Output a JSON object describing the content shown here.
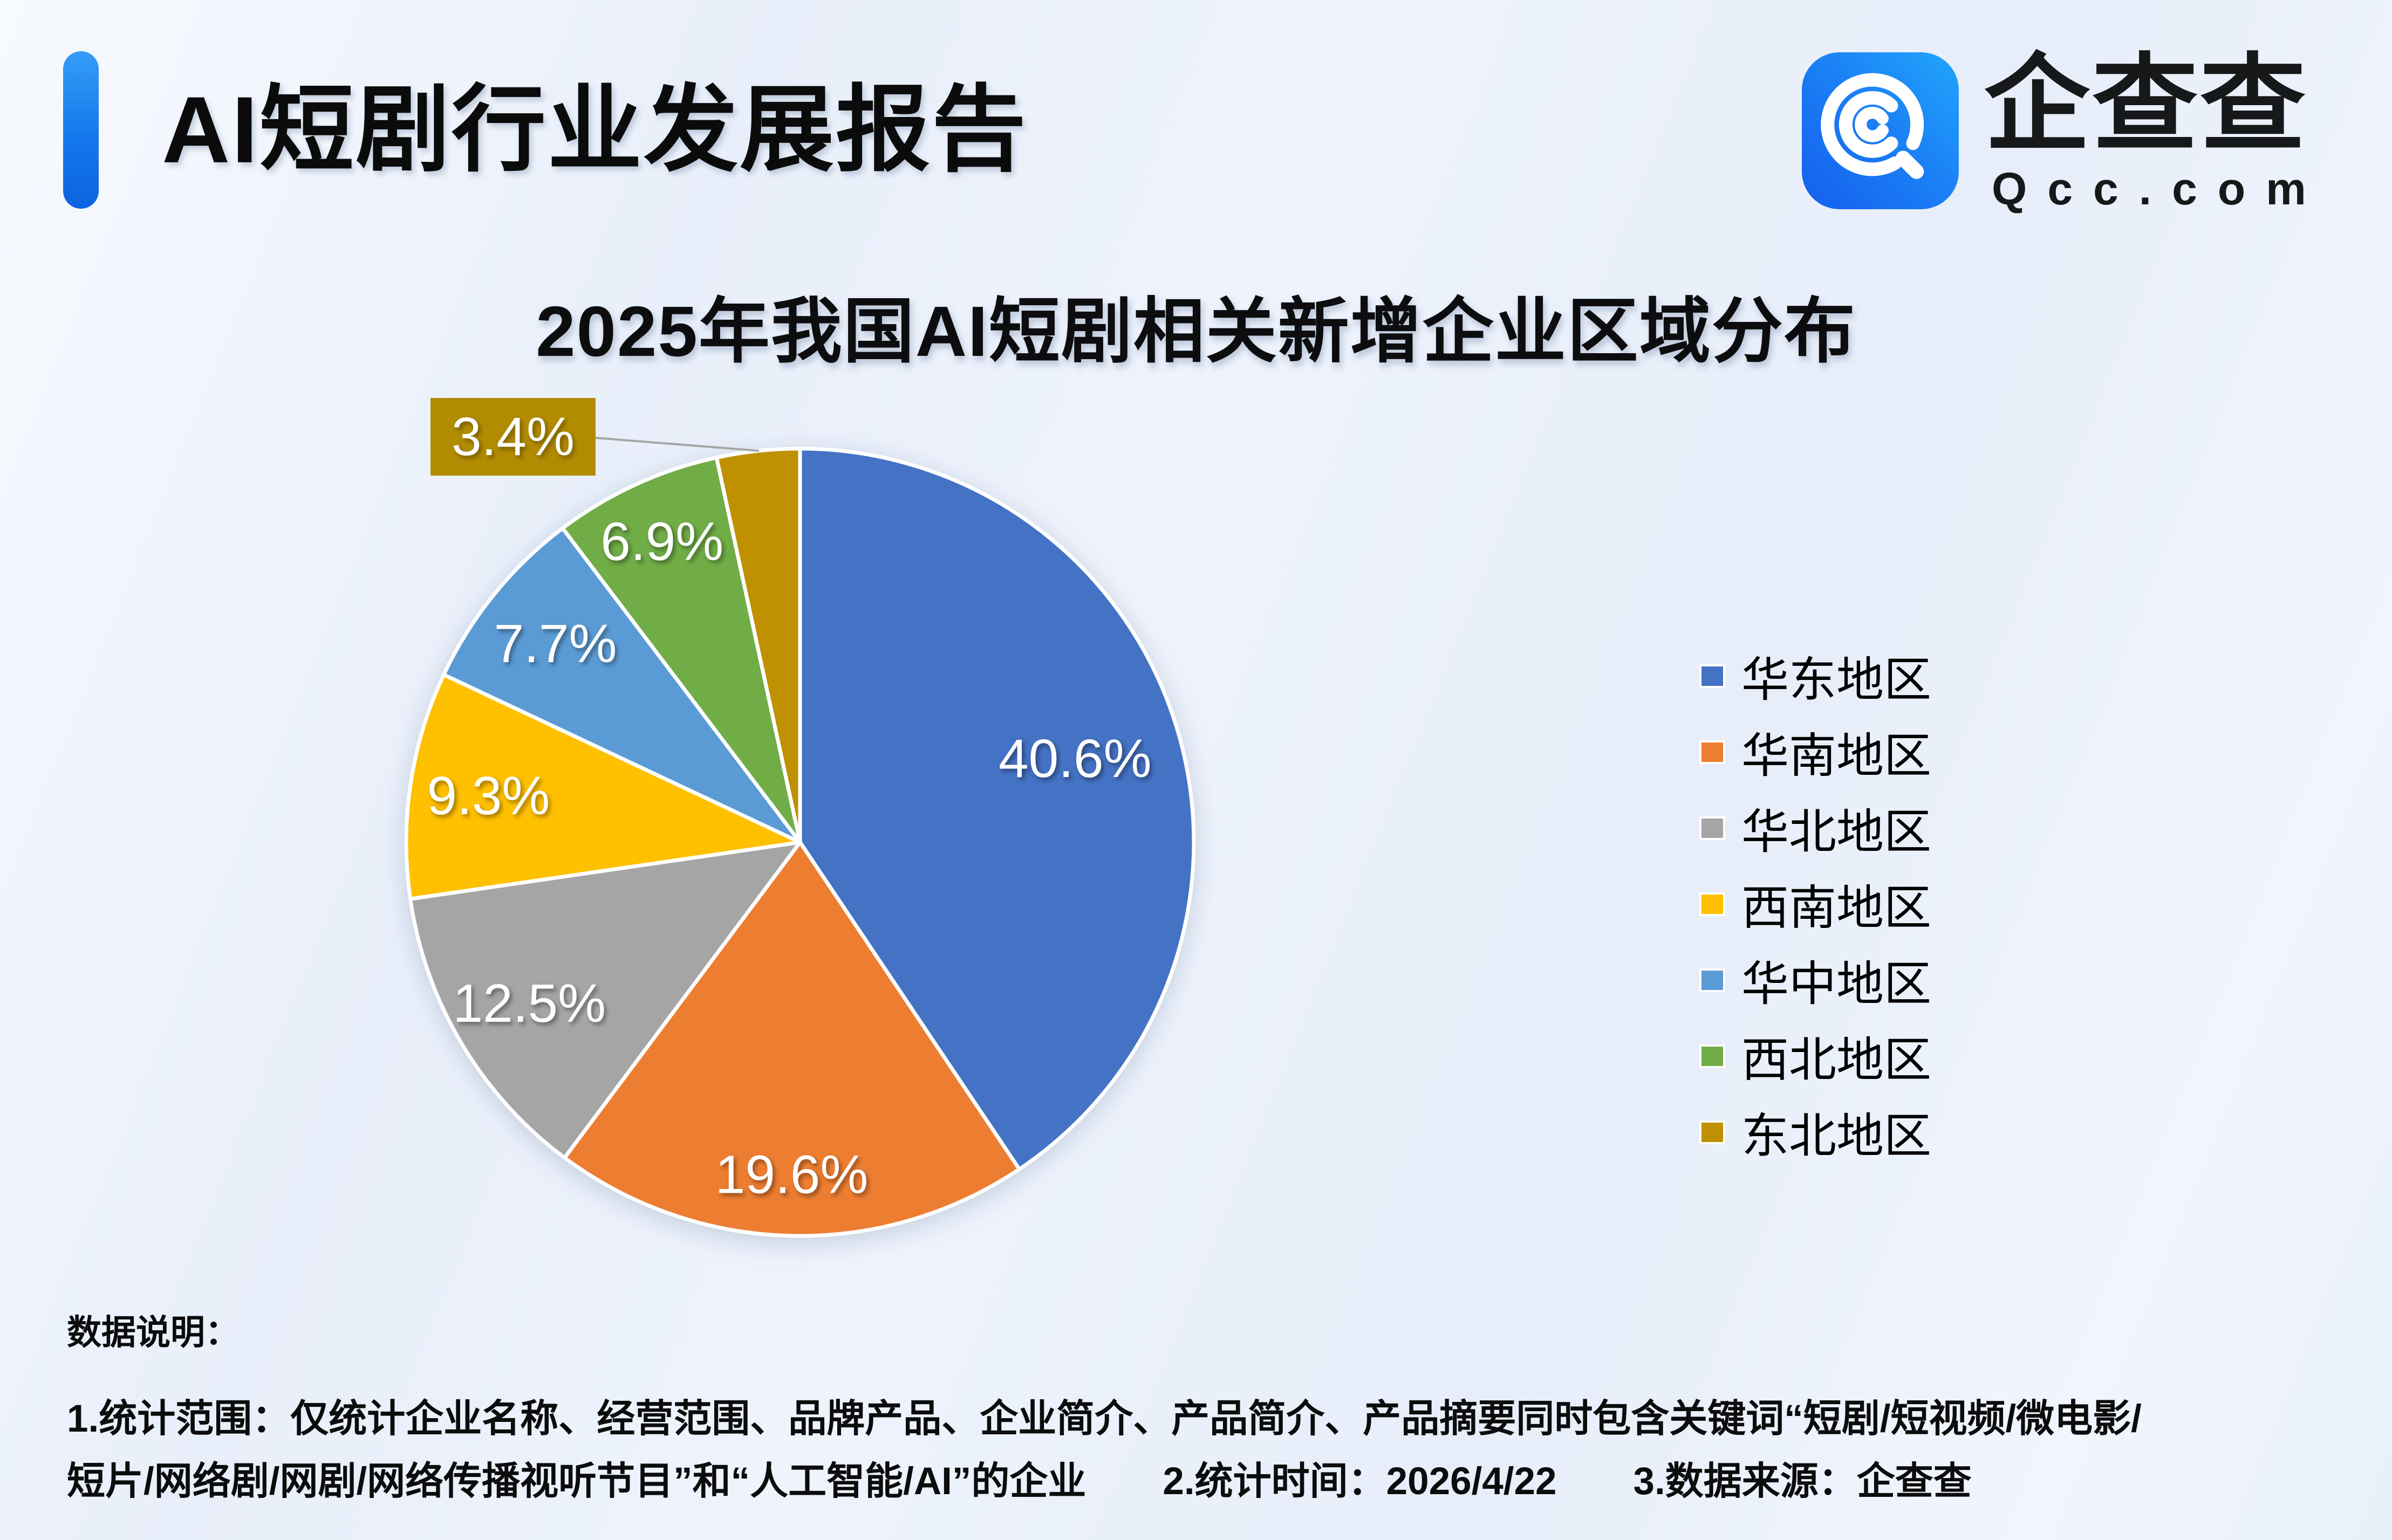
{
  "header": {
    "title": "AI短剧行业发展报告"
  },
  "logo": {
    "name": "企查查",
    "domain": "Qcc.com"
  },
  "chart": {
    "title": "2025年我国AI短剧相关新增企业区域分布"
  },
  "chart_data": {
    "type": "pie",
    "title": "2025年我国AI短剧相关新增企业区域分布",
    "categories": [
      "华东地区",
      "华南地区",
      "华北地区",
      "西南地区",
      "华中地区",
      "西北地区",
      "东北地区"
    ],
    "values": [
      40.6,
      19.6,
      12.5,
      9.3,
      7.7,
      6.9,
      3.4
    ],
    "labels": [
      "40.6%",
      "19.6%",
      "12.5%",
      "9.3%",
      "7.7%",
      "6.9%",
      "3.4%"
    ],
    "unit": "%",
    "colors": [
      "#4472C4",
      "#ED7D31",
      "#A5A5A5",
      "#FFC000",
      "#5B9BD5",
      "#70AD47",
      "#BF9000"
    ],
    "slice_border_color": "#FFFFFF",
    "start_angle_deg": 0,
    "direction": "clockwise",
    "legend_position": "right",
    "callout": {
      "index": 6,
      "label": "3.4%",
      "box_color": "#B18B00",
      "leader_color": "#A6A6A6"
    }
  },
  "notes": {
    "heading": "数据说明：",
    "line1": "1.统计范围：仅统计企业名称、经营范围、品牌产品、企业简介、产品简介、产品摘要同时包含关键词“短剧/短视频/微电影/",
    "line2": "短片/网络剧/网剧/网络传播视听节目”和“人工智能/AI”的企业　　2.统计时间：2026/4/22　　3.数据来源：企查查"
  }
}
